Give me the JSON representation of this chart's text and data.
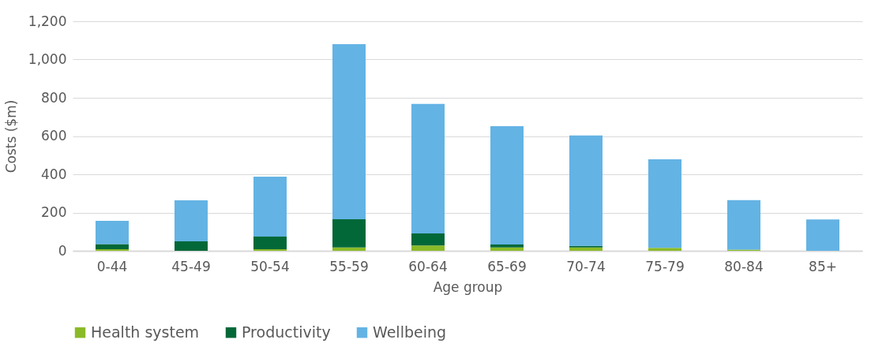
{
  "chart_data": {
    "type": "bar",
    "stacked": true,
    "xlabel": "Age group",
    "ylabel": "Costs ($m)",
    "categories": [
      "0-44",
      "45-49",
      "50-54",
      "55-59",
      "60-64",
      "65-69",
      "70-74",
      "75-79",
      "80-84",
      "85+"
    ],
    "series": [
      {
        "name": "Health system",
        "color": "#8aba28",
        "values": [
          8,
          null,
          8,
          18,
          28,
          18,
          18,
          15,
          6,
          null
        ]
      },
      {
        "name": "Productivity",
        "color": "#036838",
        "values": [
          27,
          50,
          66,
          147,
          63,
          15,
          8,
          0,
          0,
          0
        ]
      },
      {
        "name": "Wellbeing",
        "color": "#63b3e4",
        "values": [
          122,
          214,
          314,
          915,
          677,
          619,
          577,
          463,
          259,
          164
        ]
      }
    ],
    "ylim": [
      0,
      1200
    ],
    "yticks": [
      0,
      {
        "value": 200,
        "label": "200"
      },
      {
        "value": 400,
        "label": "400"
      },
      {
        "value": 600,
        "label": "600"
      },
      {
        "value": 800,
        "label": "800"
      },
      {
        "value": 1000,
        "label": "1,000"
      },
      {
        "value": 1200,
        "label": "1,200"
      }
    ],
    "grid": "y",
    "legend": "bottom"
  }
}
